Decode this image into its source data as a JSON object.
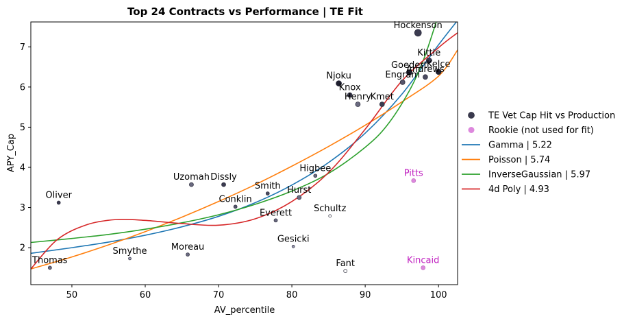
{
  "chart_data": {
    "type": "scatter",
    "title": "Top 24 Contracts vs Performance | TE Fit",
    "xlabel": "AV_percentile",
    "ylabel": "APY_Cap",
    "xlim": [
      44.4,
      102.6
    ],
    "ylim": [
      1.08,
      7.62
    ],
    "x_ticks": [
      "50",
      "60",
      "70",
      "80",
      "90",
      "100"
    ],
    "y_ticks": [
      "2",
      "3",
      "4",
      "5",
      "6",
      "7"
    ],
    "grid": false,
    "legend_position": "center-right (outside plot)",
    "legend": [
      {
        "label": "TE Vet Cap Hit vs Production",
        "kind": "marker",
        "color": "#3a3a4e"
      },
      {
        "label": "Rookie (not used for fit)",
        "kind": "marker",
        "color": "#dd88dd"
      },
      {
        "label": "Gamma | 5.22",
        "kind": "line",
        "color": "#1f77b4"
      },
      {
        "label": "Poisson | 5.74",
        "kind": "line",
        "color": "#ff7f0e"
      },
      {
        "label": "InverseGaussian | 5.97",
        "kind": "line",
        "color": "#2ca02c"
      },
      {
        "label": "4d Poly | 4.93",
        "kind": "line",
        "color": "#d62728"
      }
    ],
    "points": [
      {
        "name": "Hockenson",
        "x": 97.2,
        "y": 7.35,
        "size": 9,
        "shade": "#3b3b50",
        "rookie": false
      },
      {
        "name": "Kittle",
        "x": 98.7,
        "y": 6.66,
        "size": 7,
        "shade": "#3b3b50",
        "rookie": false
      },
      {
        "name": "Kelce",
        "x": 100.0,
        "y": 6.38,
        "size": 7,
        "shade": "#1e1e2e",
        "rookie": false
      },
      {
        "name": "Goedert",
        "x": 96.0,
        "y": 6.36,
        "size": 7,
        "shade": "#1e1e2e",
        "rookie": false
      },
      {
        "name": "Andrews",
        "x": 98.2,
        "y": 6.25,
        "size": 6,
        "shade": "#4a4a60",
        "rookie": false
      },
      {
        "name": "Engram",
        "x": 95.1,
        "y": 6.12,
        "size": 6,
        "shade": "#55556c",
        "rookie": false
      },
      {
        "name": "Njoku",
        "x": 86.4,
        "y": 6.09,
        "size": 7,
        "shade": "#1e1e2e",
        "rookie": false
      },
      {
        "name": "Knox",
        "x": 87.9,
        "y": 5.8,
        "size": 6,
        "shade": "#3b3b50",
        "rookie": false
      },
      {
        "name": "Henry",
        "x": 89.0,
        "y": 5.57,
        "size": 6,
        "shade": "#6a6a80",
        "rookie": false
      },
      {
        "name": "Kmet",
        "x": 92.3,
        "y": 5.57,
        "size": 6,
        "shade": "#3b3b50",
        "rookie": false
      },
      {
        "name": "Uzomah",
        "x": 66.3,
        "y": 3.57,
        "size": 5,
        "shade": "#6a6a80",
        "rookie": false
      },
      {
        "name": "Dissly",
        "x": 70.7,
        "y": 3.57,
        "size": 5,
        "shade": "#3b3b50",
        "rookie": false
      },
      {
        "name": "Higbee",
        "x": 83.2,
        "y": 3.79,
        "size": 4,
        "shade": "#6a6a80",
        "rookie": false
      },
      {
        "name": "Smith",
        "x": 76.7,
        "y": 3.35,
        "size": 4,
        "shade": "#4a4a60",
        "rookie": false
      },
      {
        "name": "Hurst",
        "x": 81.0,
        "y": 3.25,
        "size": 5,
        "shade": "#6a6a80",
        "rookie": false
      },
      {
        "name": "Conklin",
        "x": 72.3,
        "y": 3.02,
        "size": 4,
        "shade": "#55556c",
        "rookie": false
      },
      {
        "name": "Oliver",
        "x": 48.2,
        "y": 3.12,
        "size": 4,
        "shade": "#3b3b50",
        "rookie": false
      },
      {
        "name": "Schultz",
        "x": 85.2,
        "y": 2.79,
        "size": 3,
        "shade": "#ffffff",
        "rookie": false
      },
      {
        "name": "Everett",
        "x": 77.8,
        "y": 2.68,
        "size": 4,
        "shade": "#6a6a80",
        "rookie": false
      },
      {
        "name": "Gesicki",
        "x": 80.2,
        "y": 2.03,
        "size": 3,
        "shade": "#9a9ab0",
        "rookie": false
      },
      {
        "name": "Moreau",
        "x": 65.8,
        "y": 1.83,
        "size": 4,
        "shade": "#6a6a80",
        "rookie": false
      },
      {
        "name": "Smythe",
        "x": 57.9,
        "y": 1.73,
        "size": 3,
        "shade": "#9a9ab0",
        "rookie": false
      },
      {
        "name": "Thomas",
        "x": 47.0,
        "y": 1.5,
        "size": 4,
        "shade": "#6a6a80",
        "rookie": false
      },
      {
        "name": "Fant",
        "x": 87.3,
        "y": 1.42,
        "size": 4,
        "shade": "#ffffff",
        "rookie": false
      },
      {
        "name": "Pitts",
        "x": 96.6,
        "y": 3.67,
        "size": 5,
        "shade": "#dd88dd",
        "rookie": true
      },
      {
        "name": "Kincaid",
        "x": 97.9,
        "y": 1.5,
        "size": 5,
        "shade": "#dd88dd",
        "rookie": true
      }
    ],
    "series": [
      {
        "name": "Gamma | 5.22",
        "color": "#1f77b4",
        "x": [
          44.4,
          50,
          55,
          60,
          65,
          70,
          75,
          80,
          85,
          90,
          95,
          100,
          103.0
        ],
        "y": [
          1.86,
          2.0,
          2.14,
          2.31,
          2.52,
          2.78,
          3.12,
          3.56,
          4.12,
          4.85,
          5.82,
          7.05,
          7.75
        ]
      },
      {
        "name": "Poisson | 5.74",
        "color": "#ff7f0e",
        "x": [
          44.4,
          50,
          55,
          60,
          65,
          70,
          75,
          80,
          85,
          90,
          95,
          100,
          102.6
        ],
        "y": [
          1.47,
          1.77,
          2.07,
          2.4,
          2.76,
          3.15,
          3.57,
          4.03,
          4.52,
          5.05,
          5.63,
          6.27,
          6.92
        ]
      },
      {
        "name": "InverseGaussian | 5.97",
        "color": "#2ca02c",
        "x": [
          44.4,
          50,
          55,
          60,
          65,
          70,
          75,
          80,
          85,
          90,
          93,
          96,
          98,
          100
        ],
        "y": [
          2.13,
          2.23,
          2.33,
          2.46,
          2.62,
          2.82,
          3.08,
          3.41,
          3.85,
          4.5,
          5.05,
          5.9,
          6.7,
          7.8
        ]
      },
      {
        "name": "4d Poly | 4.93",
        "color": "#d62728",
        "x": [
          44.4,
          48,
          52,
          56,
          60,
          65,
          70,
          75,
          80,
          85,
          90,
          95,
          100,
          102.6
        ],
        "y": [
          1.47,
          2.2,
          2.57,
          2.7,
          2.68,
          2.6,
          2.56,
          2.72,
          3.15,
          3.87,
          4.95,
          6.15,
          6.98,
          7.35
        ]
      }
    ]
  }
}
